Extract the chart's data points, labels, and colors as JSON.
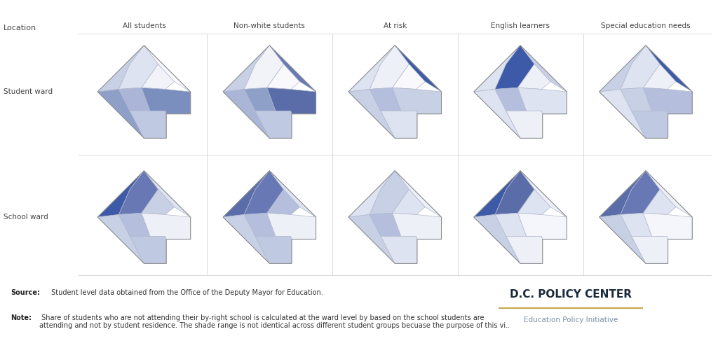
{
  "col_headers": [
    "All students",
    "Non-white students",
    "At risk",
    "English learners",
    "Special education needs"
  ],
  "row_headers": [
    "Student ward",
    "School ward"
  ],
  "title_text": "Location",
  "source_bold": "Source:",
  "source_rest": " Student level data obtained from the Office of the Deputy Mayor for Education.",
  "note_bold": "Note:",
  "note_rest": " Share of students who are not attending their by-right school is calculated at the ward level by based on the school students are\nattending and not by student residence. The shade range is not identical across different student groups becuase the purpose of this vi..",
  "branding_title": "D.C. POLICY CENTER",
  "branding_subtitle": "Education Policy Initiative",
  "branding_line_color": "#C9A84C",
  "bg_color": "#ffffff",
  "border_color": "#dddddd",
  "ward_colors": {
    "row0_col0": [
      "#c8d0e5",
      "#dde3f0",
      "#f2f3f9",
      "#f9f9fd",
      "#8fa0c8",
      "#aab5d8",
      "#c0c9e2",
      "#7b8fbf"
    ],
    "row0_col1": [
      "#c8d0e5",
      "#f2f3f9",
      "#f9f9fd",
      "#6778b5",
      "#aab5d8",
      "#8fa0c8",
      "#c0c9e2",
      "#5a6da8"
    ],
    "row0_col2": [
      "#dde3f0",
      "#eef0f8",
      "#f9f9fd",
      "#3d5aa8",
      "#c8d0e5",
      "#b5bedd",
      "#dde3f0",
      "#c8d0e5"
    ],
    "row0_col3": [
      "#dde3f0",
      "#3d5aa8",
      "#eef0f8",
      "#c8d0e5",
      "#dde3f0",
      "#b5bedd",
      "#eef0f8",
      "#dde3f0"
    ],
    "row0_col4": [
      "#c8d0e5",
      "#dde3f0",
      "#eef0f8",
      "#3d5aa8",
      "#dde3f0",
      "#c8d0e5",
      "#c0c9e2",
      "#b5bedd"
    ],
    "row1_col0": [
      "#3d5aa8",
      "#6778b5",
      "#c8d0e5",
      "#dde3f0",
      "#c8d0e5",
      "#b5bedd",
      "#c0c9e2",
      "#eef0f8"
    ],
    "row1_col1": [
      "#5a6da8",
      "#6778b5",
      "#b5bedd",
      "#dde3f0",
      "#c8d0e5",
      "#b5bedd",
      "#c0c9e2",
      "#eef0f8"
    ],
    "row1_col2": [
      "#dde3f0",
      "#c8d0e5",
      "#dde3f0",
      "#eef0f8",
      "#c8d0e5",
      "#b5bedd",
      "#dde3f0",
      "#eef0f8"
    ],
    "row1_col3": [
      "#3d5aa8",
      "#5a6da8",
      "#dde3f0",
      "#eef0f8",
      "#c8d0e5",
      "#dde3f0",
      "#eef0f8",
      "#f5f6fb"
    ],
    "row1_col4": [
      "#5a6da8",
      "#6778b5",
      "#dde3f0",
      "#eef0f8",
      "#c8d0e5",
      "#dde3f0",
      "#eef0f8",
      "#f5f6fb"
    ]
  }
}
